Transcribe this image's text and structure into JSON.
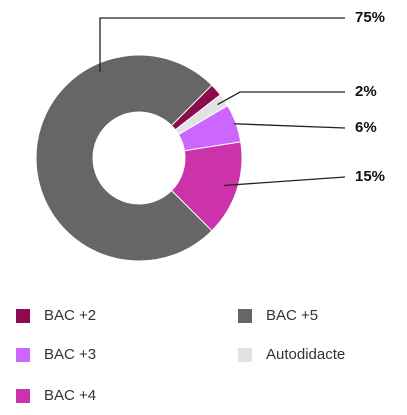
{
  "chart_data": {
    "type": "donut",
    "categories": [
      "BAC +2",
      "Autodidacte",
      "BAC +3",
      "BAC +4",
      "BAC +5"
    ],
    "values": [
      2,
      2,
      6,
      15,
      75
    ],
    "value_labels": [
      null,
      "2%",
      "6%",
      "15%",
      "75%"
    ],
    "colors": [
      "#8c0a4e",
      "#e2e2e2",
      "#cc66ff",
      "#cc33aa",
      "#666666"
    ],
    "legend_order": [
      0,
      4,
      2,
      1,
      3
    ]
  }
}
